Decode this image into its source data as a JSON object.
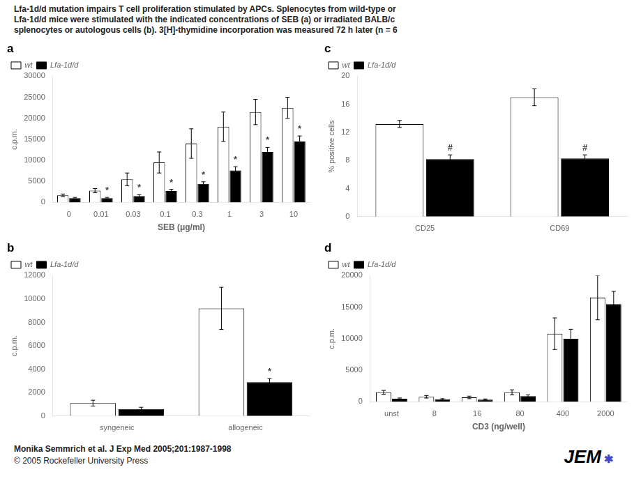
{
  "title": [
    "Lfa-1d/d mutation impairs T cell proliferation stimulated by APCs. Splenocytes from wild-type or",
    "Lfa-1d/d mice were stimulated with the indicated concentrations of SEB (a) or irradiated BALB/c",
    "splenocytes or autologous cells (b). 3[H]-thymidine incorporation was measured 72 h later (n = 6"
  ],
  "annotations": [
    "Monika Semmrich et al. J Exp Med 2005;201:1987-1998",
    "© 2005 Rockefeller University Press",
    "JEM",
    "✱"
  ],
  "chart_data": [
    {
      "type": "bar",
      "title": "a",
      "xlabel": "SEB (μg/ml)",
      "ylabel": "c.p.m.",
      "categories": [
        "0",
        "0.01",
        "0.03",
        "0.1",
        "0.3",
        "1",
        "3",
        "10"
      ],
      "series": [
        {
          "name": "wt",
          "color": "white",
          "values": [
            1700,
            2800,
            5500,
            9500,
            14000,
            18000,
            21500,
            22500
          ],
          "errors": [
            300,
            500,
            1500,
            2500,
            3500,
            3500,
            3000,
            2500
          ]
        },
        {
          "name": "Lfa-1d/d",
          "color": "black",
          "values": [
            1000,
            1000,
            1500,
            2700,
            4400,
            7600,
            12000,
            14500
          ],
          "errors": [
            200,
            200,
            350,
            400,
            500,
            900,
            1100,
            1300
          ]
        }
      ],
      "ylim": [
        0,
        30000
      ],
      "yticks": [
        0,
        5000,
        10000,
        15000,
        20000,
        25000,
        30000
      ],
      "annotations": [
        {
          "text": "*",
          "series": "Lfa-1d/d",
          "category": "0.01"
        },
        {
          "text": "*",
          "series": "Lfa-1d/d",
          "category": "0.03"
        },
        {
          "text": "*",
          "series": "Lfa-1d/d",
          "category": "0.1"
        },
        {
          "text": "*",
          "series": "Lfa-1d/d",
          "category": "0.3"
        },
        {
          "text": "*",
          "series": "Lfa-1d/d",
          "category": "1"
        },
        {
          "text": "*",
          "series": "Lfa-1d/d",
          "category": "3"
        },
        {
          "text": "*",
          "series": "Lfa-1d/d",
          "category": "10"
        }
      ],
      "legend": "upper left",
      "grid": false
    },
    {
      "type": "bar",
      "title": "b",
      "ylabel": "c.p.m.",
      "categories": [
        "syngeneic",
        "allogeneic"
      ],
      "series": [
        {
          "name": "wt",
          "color": "white",
          "values": [
            1100,
            9200
          ],
          "errors": [
            250,
            1800
          ]
        },
        {
          "name": "Lfa-1d/d",
          "color": "black",
          "values": [
            600,
            2900
          ],
          "errors": [
            150,
            300
          ]
        }
      ],
      "ylim": [
        0,
        12000
      ],
      "yticks": [
        0,
        2000,
        4000,
        6000,
        8000,
        10000,
        12000
      ],
      "annotations": [
        {
          "text": "*",
          "series": "Lfa-1d/d",
          "category": "allogeneic"
        }
      ],
      "legend": "upper left",
      "grid": false
    },
    {
      "type": "bar",
      "title": "c",
      "ylabel": "% positive cells",
      "categories": [
        "CD25",
        "CD69"
      ],
      "series": [
        {
          "name": "wt",
          "color": "white",
          "values": [
            13.2,
            17.0
          ],
          "errors": [
            0.5,
            1.2
          ]
        },
        {
          "name": "Lfa-1d/d",
          "color": "black",
          "values": [
            8.2,
            8.3
          ],
          "errors": [
            0.6,
            0.5
          ]
        }
      ],
      "ylim": [
        0,
        20
      ],
      "yticks": [
        0,
        4,
        8,
        12,
        16,
        20
      ],
      "annotations": [
        {
          "text": "#",
          "series": "Lfa-1d/d",
          "category": "CD25"
        },
        {
          "text": "#",
          "series": "Lfa-1d/d",
          "category": "CD69"
        }
      ],
      "legend": "upper left",
      "grid": false
    },
    {
      "type": "bar",
      "title": "d",
      "xlabel": "CD3 (ng/well)",
      "ylabel": "c.p.m.",
      "categories": [
        "unst",
        "8",
        "16",
        "80",
        "400",
        "2000"
      ],
      "series": [
        {
          "name": "wt",
          "color": "white",
          "values": [
            1500,
            800,
            700,
            1500,
            10800,
            16500
          ],
          "errors": [
            300,
            200,
            200,
            400,
            2500,
            3500
          ]
        },
        {
          "name": "Lfa-1d/d",
          "color": "black",
          "values": [
            500,
            400,
            350,
            900,
            10000,
            15500
          ],
          "errors": [
            100,
            100,
            100,
            200,
            1500,
            2000
          ]
        }
      ],
      "ylim": [
        0,
        20000
      ],
      "yticks": [
        0,
        5000,
        10000,
        15000,
        20000
      ],
      "legend": "upper left",
      "grid": false
    }
  ]
}
